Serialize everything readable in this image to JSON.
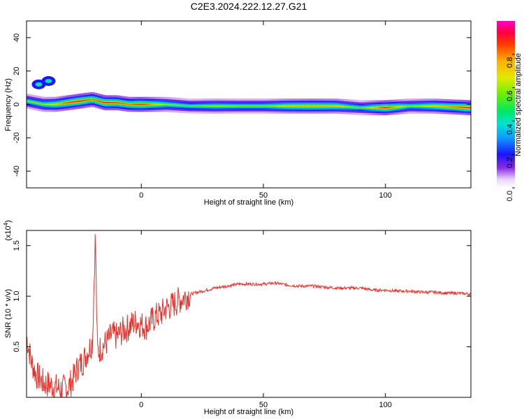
{
  "title": "C2E3.2024.222.12.27.G21",
  "chart_data": [
    {
      "type": "heatmap",
      "xlabel": "Height of straight line (km)",
      "ylabel": "Frequency (Hz)",
      "xlim": [
        -47,
        135
      ],
      "ylim": [
        -50,
        50
      ],
      "xticks": [
        0,
        50,
        100
      ],
      "xtick_labels": [
        "0",
        "50",
        "100"
      ],
      "yticks": [
        -40,
        -20,
        0,
        20,
        40
      ],
      "ytick_labels": [
        "-40",
        "-20",
        "0",
        "20",
        "40"
      ],
      "colorbar": {
        "label": "Normalized spectral amplitude",
        "range": [
          0,
          1
        ],
        "ticks": [
          0.0,
          0.2,
          0.4,
          0.6,
          0.8
        ],
        "tick_labels": [
          "0.0",
          "0.2",
          "0.4",
          "0.6",
          "0.8"
        ]
      },
      "ridge": {
        "x": [
          -47,
          -40,
          -35,
          -30,
          -25,
          -20,
          -15,
          -10,
          -5,
          0,
          10,
          20,
          30,
          40,
          50,
          60,
          70,
          80,
          90,
          100,
          110,
          120,
          135
        ],
        "frequency": [
          2,
          0,
          0,
          1,
          2,
          3,
          1,
          1,
          0,
          0,
          0,
          -1,
          -1,
          -1,
          -1,
          -1,
          -1,
          -1,
          -2,
          -2,
          -1,
          -1,
          -2
        ],
        "amplitude": [
          0.55,
          0.6,
          0.7,
          0.85,
          0.9,
          0.8,
          0.9,
          0.85,
          0.8,
          0.9,
          0.6,
          0.5,
          0.6,
          0.55,
          0.55,
          0.7,
          0.75,
          0.7,
          0.5,
          0.9,
          0.55,
          0.7,
          0.9
        ]
      },
      "secondary_feature": {
        "x": [
          -42,
          -38
        ],
        "frequency": [
          12,
          14
        ]
      },
      "grid": false
    },
    {
      "type": "line",
      "xlabel": "Height of straight line (km)",
      "ylabel": "SNR (10 * v/v)",
      "y_multiplier": "(x10",
      "y_multiplier_exp": "4",
      "y_multiplier_close": ")",
      "xlim": [
        -47,
        135
      ],
      "ylim": [
        0,
        1.65
      ],
      "xticks": [
        0,
        50,
        100
      ],
      "xtick_labels": [
        "0",
        "50",
        "100"
      ],
      "yticks": [
        0.5,
        1.0,
        1.5
      ],
      "ytick_labels": [
        "0.5",
        "1.0",
        "1.5"
      ],
      "series": [
        {
          "color": "#e8302a",
          "x": [
            -47,
            -45,
            -43,
            -40,
            -37,
            -35,
            -33,
            -30,
            -28,
            -26,
            -24,
            -22,
            -20,
            -18.8,
            -18,
            -16,
            -14,
            -12,
            -10,
            -8,
            -6,
            -4,
            -2,
            0,
            2,
            4,
            6,
            8,
            10,
            12,
            15,
            18,
            20,
            25,
            30,
            35,
            40,
            45,
            50,
            55,
            60,
            65,
            70,
            75,
            80,
            85,
            90,
            95,
            100,
            105,
            110,
            115,
            120,
            125,
            130,
            135
          ],
          "y": [
            0.6,
            0.35,
            0.22,
            0.14,
            0.12,
            0.1,
            0.08,
            0.1,
            0.18,
            0.3,
            0.35,
            0.45,
            0.55,
            1.62,
            0.45,
            0.5,
            0.55,
            0.62,
            0.6,
            0.65,
            0.68,
            0.72,
            0.75,
            0.72,
            0.7,
            0.75,
            0.8,
            0.82,
            0.88,
            0.9,
            0.95,
            1.0,
            1.02,
            1.05,
            1.08,
            1.1,
            1.12,
            1.12,
            1.12,
            1.13,
            1.11,
            1.1,
            1.1,
            1.09,
            1.08,
            1.08,
            1.08,
            1.06,
            1.06,
            1.05,
            1.05,
            1.04,
            1.04,
            1.03,
            1.03,
            1.02
          ]
        }
      ],
      "grid": false
    }
  ]
}
